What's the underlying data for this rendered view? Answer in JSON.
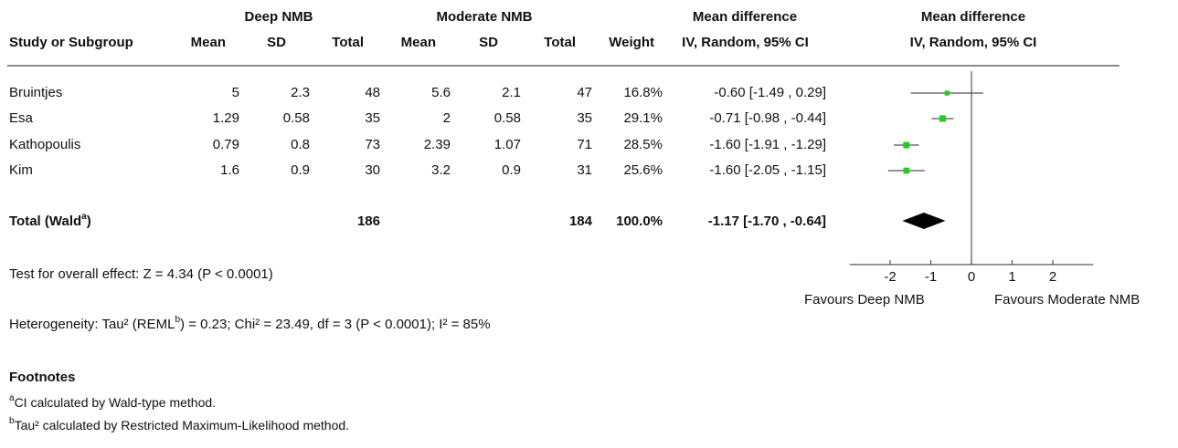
{
  "headers": {
    "group1": "Deep NMB",
    "group2": "Moderate NMB",
    "md_col_1": "Mean difference",
    "md_col_2": "IV, Random, 95% CI",
    "md_plot_1": "Mean difference",
    "md_plot_2": "IV, Random, 95% CI",
    "study": "Study or Subgroup",
    "mean1": "Mean",
    "sd1": "SD",
    "total1": "Total",
    "mean2": "Mean",
    "sd2": "SD",
    "total2": "Total",
    "weight": "Weight"
  },
  "studies": [
    {
      "name": "Bruintjes",
      "mean1": "5",
      "sd1": "2.3",
      "total1": "48",
      "mean2": "5.6",
      "sd2": "2.1",
      "total2": "47",
      "weight": "16.8%",
      "ci": "-0.60 [-1.49 , 0.29]"
    },
    {
      "name": "Esa",
      "mean1": "1.29",
      "sd1": "0.58",
      "total1": "35",
      "mean2": "2",
      "sd2": "0.58",
      "total2": "35",
      "weight": "29.1%",
      "ci": "-0.71 [-0.98 , -0.44]"
    },
    {
      "name": "Kathopoulis",
      "mean1": "0.79",
      "sd1": "0.8",
      "total1": "73",
      "mean2": "2.39",
      "sd2": "1.07",
      "total2": "71",
      "weight": "28.5%",
      "ci": "-1.60 [-1.91 , -1.29]"
    },
    {
      "name": "Kim",
      "mean1": "1.6",
      "sd1": "0.9",
      "total1": "30",
      "mean2": "3.2",
      "sd2": "0.9",
      "total2": "31",
      "weight": "25.6%",
      "ci": "-1.60 [-2.05 , -1.15]"
    }
  ],
  "total": {
    "label": "Total (Wald",
    "label_sup": "a",
    "label_close": ")",
    "total1": "186",
    "total2": "184",
    "weight": "100.0%",
    "ci": "-1.17 [-1.70 , -0.64]"
  },
  "overall_effect": "Test for overall effect: Z = 4.34 (P < 0.0001)",
  "heterogeneity": {
    "pre": "Heterogeneity: Tau² (REML",
    "sup": "b",
    "post": ") = 0.23; Chi² = 23.49, df = 3 (P < 0.0001); I² = 85%"
  },
  "footnotes": {
    "title": "Footnotes",
    "a_mark": "a",
    "a_text": "CI calculated by Wald-type method.",
    "b_mark": "b",
    "b_text": "Tau² calculated by Restricted Maximum-Likelihood method."
  },
  "axis_labels": {
    "left": "Favours Deep NMB",
    "right": "Favours Moderate NMB"
  },
  "colors": {
    "marker": "#22cc22",
    "ci_line": "#555555",
    "diamond": "#000000",
    "axis": "#555555"
  },
  "chart_data": {
    "type": "scatter",
    "title": "",
    "xlabel": "",
    "ylabel": "",
    "xlim": [
      -2.5,
      2.5
    ],
    "ticks": [
      -2,
      -1,
      0,
      1,
      2
    ],
    "tick_labels": [
      "-2",
      "-1",
      "0",
      "1",
      "2"
    ],
    "points": [
      {
        "study": "Bruintjes",
        "estimate": -0.6,
        "lower": -1.49,
        "upper": 0.29,
        "weight": 16.8
      },
      {
        "study": "Esa",
        "estimate": -0.71,
        "lower": -0.98,
        "upper": -0.44,
        "weight": 29.1
      },
      {
        "study": "Kathopoulis",
        "estimate": -1.6,
        "lower": -1.91,
        "upper": -1.29,
        "weight": 28.5
      },
      {
        "study": "Kim",
        "estimate": -1.6,
        "lower": -2.05,
        "upper": -1.15,
        "weight": 25.6
      }
    ],
    "pooled": {
      "estimate": -1.17,
      "lower": -1.7,
      "upper": -0.64
    }
  }
}
